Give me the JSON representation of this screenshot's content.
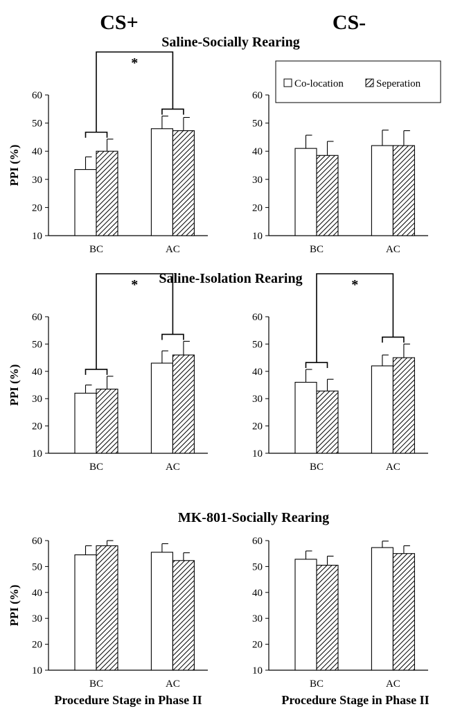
{
  "column_headers": [
    "CS+",
    "CS-"
  ],
  "row_titles": [
    "Saline-Socially Rearing",
    "Saline-Isolation Rearing",
    "MK-801-Socially Rearing"
  ],
  "y_axis_label": "PPI (%)",
  "x_axis_label": "Procedure Stage in Phase II",
  "significance_marker": "*",
  "legend": {
    "entries": [
      "Co-location",
      "Seperation"
    ],
    "patterns": [
      "open",
      "hatched"
    ]
  },
  "chart_data": [
    {
      "type": "bar",
      "row": 0,
      "col": 0,
      "title": "Saline-Socially Rearing",
      "column_header": "CS+",
      "categories": [
        "BC",
        "AC"
      ],
      "series": [
        {
          "name": "Co-location",
          "values": [
            33.5,
            48
          ],
          "errors": [
            4.5,
            4.5
          ]
        },
        {
          "name": "Seperation",
          "values": [
            40,
            47.3
          ],
          "errors": [
            4.3,
            4.7
          ]
        }
      ],
      "ylabel": "PPI (%)",
      "xlabel": "",
      "ylim": [
        10,
        60
      ],
      "yticks": [
        10,
        20,
        30,
        40,
        50,
        60
      ],
      "significance": "*"
    },
    {
      "type": "bar",
      "row": 0,
      "col": 1,
      "title": "Saline-Socially Rearing",
      "column_header": "CS-",
      "categories": [
        "BC",
        "AC"
      ],
      "series": [
        {
          "name": "Co-location",
          "values": [
            41,
            42
          ],
          "errors": [
            4.7,
            5.5
          ]
        },
        {
          "name": "Seperation",
          "values": [
            38.5,
            42
          ],
          "errors": [
            5,
            5.3
          ]
        }
      ],
      "ylabel": "",
      "xlabel": "",
      "ylim": [
        10,
        60
      ],
      "yticks": [
        10,
        20,
        30,
        40,
        50,
        60
      ],
      "legend": "top"
    },
    {
      "type": "bar",
      "row": 1,
      "col": 0,
      "title": "Saline-Isolation Rearing",
      "column_header": "CS+",
      "categories": [
        "BC",
        "AC"
      ],
      "series": [
        {
          "name": "Co-location",
          "values": [
            32,
            43
          ],
          "errors": [
            3,
            4.5
          ]
        },
        {
          "name": "Seperation",
          "values": [
            33.5,
            46
          ],
          "errors": [
            4.7,
            5
          ]
        }
      ],
      "ylabel": "PPI (%)",
      "xlabel": "",
      "ylim": [
        10,
        60
      ],
      "yticks": [
        10,
        20,
        30,
        40,
        50,
        60
      ],
      "significance": "*"
    },
    {
      "type": "bar",
      "row": 1,
      "col": 1,
      "title": "Saline-Isolation Rearing",
      "column_header": "CS-",
      "categories": [
        "BC",
        "AC"
      ],
      "series": [
        {
          "name": "Co-location",
          "values": [
            36,
            42
          ],
          "errors": [
            4.7,
            4
          ]
        },
        {
          "name": "Seperation",
          "values": [
            32.8,
            45
          ],
          "errors": [
            4.3,
            5
          ]
        }
      ],
      "ylabel": "",
      "xlabel": "",
      "ylim": [
        10,
        60
      ],
      "yticks": [
        10,
        20,
        30,
        40,
        50,
        60
      ],
      "significance": "*"
    },
    {
      "type": "bar",
      "row": 2,
      "col": 0,
      "title": "MK-801-Socially Rearing",
      "column_header": "CS+",
      "categories": [
        "BC",
        "AC"
      ],
      "series": [
        {
          "name": "Co-location",
          "values": [
            54.5,
            55.5
          ],
          "errors": [
            3.5,
            3.3
          ]
        },
        {
          "name": "Seperation",
          "values": [
            58,
            52.3
          ],
          "errors": [
            2,
            3
          ]
        }
      ],
      "ylabel": "PPI (%)",
      "xlabel": "Procedure Stage in Phase II",
      "ylim": [
        10,
        60
      ],
      "yticks": [
        10,
        20,
        30,
        40,
        50,
        60
      ]
    },
    {
      "type": "bar",
      "row": 2,
      "col": 1,
      "title": "MK-801-Socially Rearing",
      "column_header": "CS-",
      "categories": [
        "BC",
        "AC"
      ],
      "series": [
        {
          "name": "Co-location",
          "values": [
            52.8,
            57.3
          ],
          "errors": [
            3.2,
            2.5
          ]
        },
        {
          "name": "Seperation",
          "values": [
            50.5,
            55
          ],
          "errors": [
            3.5,
            3
          ]
        }
      ],
      "ylabel": "",
      "xlabel": "Procedure Stage in Phase II",
      "ylim": [
        10,
        60
      ],
      "yticks": [
        10,
        20,
        30,
        40,
        50,
        60
      ]
    }
  ]
}
